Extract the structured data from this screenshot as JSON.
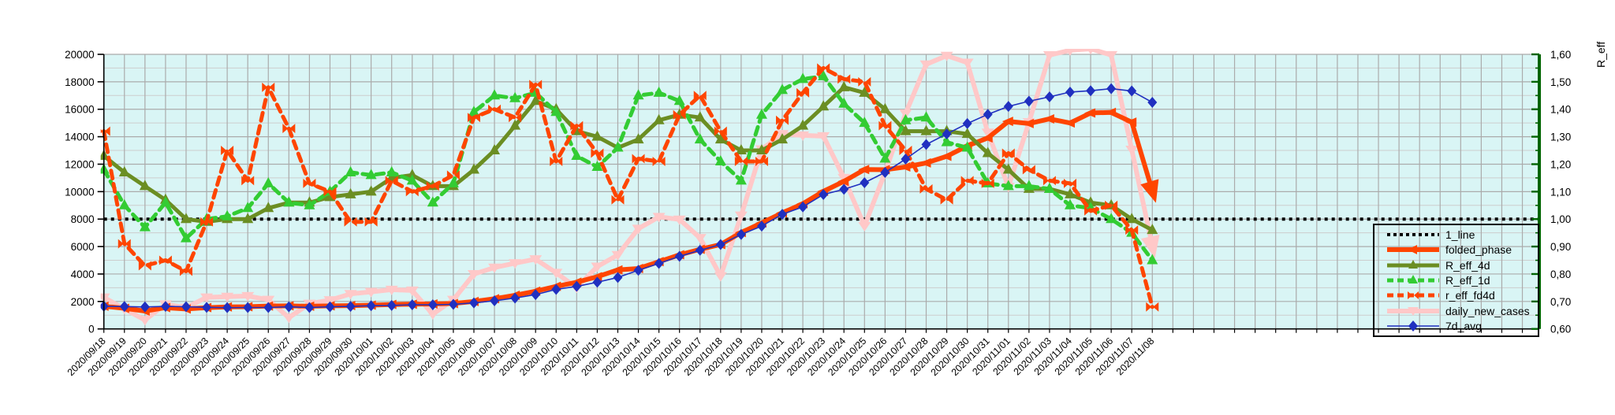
{
  "chart_data": {
    "type": "line",
    "title": "",
    "x_categories": [
      "2020/09/18",
      "2020/09/19",
      "2020/09/20",
      "2020/09/21",
      "2020/09/22",
      "2020/09/23",
      "2020/09/24",
      "2020/09/25",
      "2020/09/26",
      "2020/09/27",
      "2020/09/28",
      "2020/09/29",
      "2020/09/30",
      "2020/10/01",
      "2020/10/02",
      "2020/10/03",
      "2020/10/04",
      "2020/10/05",
      "2020/10/06",
      "2020/10/07",
      "2020/10/08",
      "2020/10/09",
      "2020/10/10",
      "2020/10/11",
      "2020/10/12",
      "2020/10/13",
      "2020/10/14",
      "2020/10/15",
      "2020/10/16",
      "2020/10/17",
      "2020/10/18",
      "2020/10/19",
      "2020/10/20",
      "2020/10/21",
      "2020/10/22",
      "2020/10/23",
      "2020/10/24",
      "2020/10/25",
      "2020/10/26",
      "2020/10/27",
      "2020/10/28",
      "2020/10/29",
      "2020/10/30",
      "2020/10/31",
      "2020/11/01",
      "2020/11/02",
      "2020/11/03",
      "2020/11/04",
      "2020/11/05",
      "2020/11/06",
      "2020/11/07",
      "2020/11/08"
    ],
    "left_axis": {
      "min": 0,
      "max": 20000,
      "major_step": 2000,
      "minor_step": 1000
    },
    "right_axis": {
      "title": "R_eff",
      "min": 0.6,
      "max": 1.6,
      "major_step": 0.1,
      "minor_step": 0.05,
      "decimal_separator": ",",
      "color": "#006400"
    },
    "grid": {
      "background": "#D9F5F5",
      "major_color": "#ABABAB",
      "minor_color": "#CDCDCD",
      "vertical_every_day": true
    },
    "reference_line": {
      "name": "1_line",
      "axis": "right",
      "value": 1.0,
      "color": "#000000",
      "style": "dotted",
      "width": 4
    },
    "legend": {
      "position": "inside-right",
      "entries": [
        "1_line",
        "folded_phase",
        "R_eff_4d",
        "R_eff_1d",
        "r_eff_fd4d",
        "daily_new_cases",
        "7d_avg"
      ]
    },
    "series": [
      {
        "name": "daily_new_cases",
        "axis": "left",
        "color": "#FFC8C8",
        "style": "solid",
        "width": 6,
        "marker": "arrow-down",
        "values": [
          2300,
          1450,
          650,
          1800,
          1550,
          2300,
          2350,
          2400,
          2130,
          820,
          1840,
          2100,
          2550,
          2700,
          2860,
          2800,
          1075,
          2130,
          4000,
          4470,
          4790,
          5080,
          4090,
          3000,
          4540,
          5390,
          7300,
          8160,
          7970,
          6630,
          3850,
          8260,
          13090,
          14200,
          14100,
          14040,
          11000,
          7500,
          11400,
          15700,
          19270,
          19900,
          19400,
          14300,
          10360,
          15060,
          19940,
          20300,
          20400,
          19950,
          13060,
          6050
        ]
      },
      {
        "name": "folded_phase",
        "axis": "left",
        "color": "#FF4500",
        "style": "solid",
        "width": 6,
        "marker": "arrow-left",
        "values": [
          1650,
          1500,
          1300,
          1550,
          1450,
          1550,
          1600,
          1620,
          1670,
          1680,
          1650,
          1680,
          1700,
          1730,
          1780,
          1800,
          1820,
          1850,
          2000,
          2200,
          2450,
          2750,
          3100,
          3400,
          3800,
          4300,
          4400,
          4900,
          5400,
          5800,
          6150,
          7020,
          7720,
          8450,
          9120,
          10020,
          10750,
          11610,
          11600,
          11800,
          12090,
          12570,
          13330,
          13910,
          15120,
          14960,
          15300,
          15000,
          15730,
          15770,
          15060,
          10060
        ]
      },
      {
        "name": "R_eff_4d",
        "axis": "right",
        "color": "#6B8E23",
        "style": "solid",
        "width": 5,
        "marker": "triangle",
        "values": [
          1.23,
          1.17,
          1.12,
          1.07,
          1.0,
          0.99,
          1.0,
          1.0,
          1.04,
          1.06,
          1.06,
          1.08,
          1.09,
          1.1,
          1.15,
          1.16,
          1.12,
          1.12,
          1.18,
          1.25,
          1.34,
          1.43,
          1.4,
          1.32,
          1.3,
          1.26,
          1.29,
          1.36,
          1.38,
          1.37,
          1.29,
          1.25,
          1.25,
          1.29,
          1.34,
          1.41,
          1.48,
          1.46,
          1.4,
          1.32,
          1.32,
          1.32,
          1.31,
          1.24,
          1.18,
          1.11,
          1.11,
          1.09,
          1.06,
          1.05,
          1.0,
          0.96
        ]
      },
      {
        "name": "R_eff_1d",
        "axis": "right",
        "color": "#33CC33",
        "style": "dashed",
        "width": 5,
        "marker": "triangle",
        "values": [
          1.18,
          1.05,
          0.97,
          1.06,
          0.93,
          1.0,
          1.01,
          1.04,
          1.13,
          1.06,
          1.05,
          1.1,
          1.17,
          1.16,
          1.17,
          1.14,
          1.06,
          1.13,
          1.39,
          1.45,
          1.44,
          1.46,
          1.39,
          1.23,
          1.19,
          1.26,
          1.45,
          1.46,
          1.43,
          1.29,
          1.21,
          1.14,
          1.38,
          1.47,
          1.51,
          1.52,
          1.42,
          1.35,
          1.22,
          1.36,
          1.37,
          1.28,
          1.26,
          1.13,
          1.12,
          1.12,
          1.11,
          1.05,
          1.04,
          1.0,
          0.95,
          0.85
        ]
      },
      {
        "name": "r_eff_fd4d",
        "axis": "right",
        "color": "#FF4500",
        "style": "dashed",
        "width": 5,
        "marker": "bowtie",
        "values": [
          1.32,
          0.91,
          0.83,
          0.85,
          0.81,
          0.99,
          1.25,
          1.14,
          1.48,
          1.33,
          1.13,
          1.1,
          0.99,
          0.99,
          1.14,
          1.1,
          1.12,
          1.16,
          1.37,
          1.4,
          1.37,
          1.49,
          1.21,
          1.34,
          1.24,
          1.07,
          1.22,
          1.21,
          1.38,
          1.45,
          1.32,
          1.21,
          1.21,
          1.36,
          1.46,
          1.55,
          1.51,
          1.5,
          1.34,
          1.25,
          1.11,
          1.07,
          1.14,
          1.13,
          1.24,
          1.18,
          1.14,
          1.13,
          1.03,
          1.05,
          0.96,
          0.68
        ]
      },
      {
        "name": "7d_avg",
        "axis": "left",
        "color": "#2030C0",
        "style": "solid",
        "width": 1.6,
        "marker": "diamond",
        "values": [
          1650,
          1630,
          1600,
          1640,
          1620,
          1570,
          1550,
          1560,
          1560,
          1610,
          1560,
          1610,
          1640,
          1690,
          1710,
          1760,
          1760,
          1790,
          1900,
          2050,
          2250,
          2500,
          2880,
          3100,
          3400,
          3750,
          4270,
          4770,
          5290,
          5730,
          6150,
          6880,
          7490,
          8350,
          8890,
          9790,
          10170,
          10650,
          11400,
          12370,
          13430,
          14200,
          14960,
          15630,
          16210,
          16590,
          16900,
          17250,
          17350,
          17500,
          17330,
          16500
        ]
      }
    ]
  }
}
